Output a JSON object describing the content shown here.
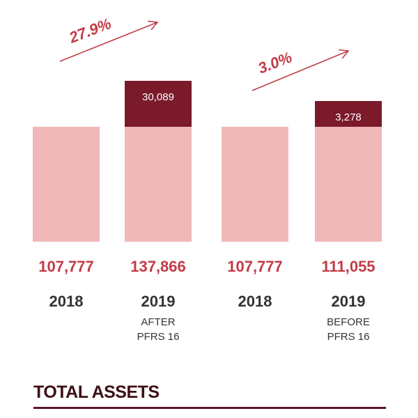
{
  "chart_data": {
    "type": "bar",
    "stacked": true,
    "title": "TOTAL ASSETS",
    "categories": [
      {
        "year": "2018",
        "note": []
      },
      {
        "year": "2019",
        "note": [
          "AFTER",
          "PFRS 16"
        ]
      },
      {
        "year": "2018",
        "note": []
      },
      {
        "year": "2019",
        "note": [
          "BEFORE",
          "PFRS 16"
        ]
      }
    ],
    "base_values": [
      107777,
      107777,
      107777,
      107777
    ],
    "increase_values": [
      0,
      30089,
      0,
      3278
    ],
    "increase_labels": [
      "",
      "30,089",
      "",
      "3,278"
    ],
    "total_labels": [
      "107,777",
      "137,866",
      "107,777",
      "111,055"
    ],
    "growth_labels": [
      "27.9%",
      "3.0%"
    ],
    "colors": {
      "base": "#f0b8b8",
      "increase": "#7a1a2b",
      "total_text": "#c23b46",
      "growth": "#c23b46",
      "year_text": "#333333",
      "title_text": "#3d1018",
      "rule": "#5e1422"
    }
  }
}
